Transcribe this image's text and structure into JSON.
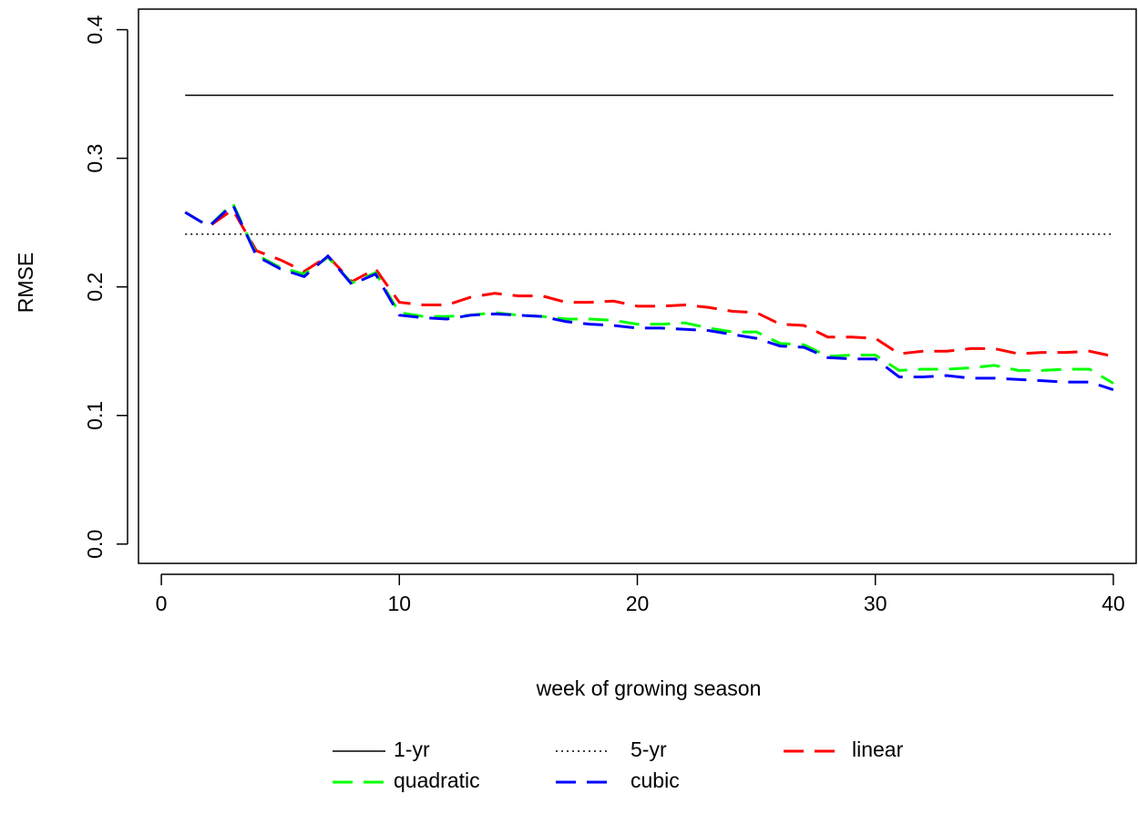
{
  "chart_data": {
    "type": "line",
    "x_label": "week of growing season",
    "y_label": "RMSE",
    "x": [
      1,
      2,
      3,
      4,
      5,
      6,
      7,
      8,
      9,
      10,
      11,
      12,
      13,
      14,
      15,
      16,
      17,
      18,
      19,
      20,
      21,
      22,
      23,
      24,
      25,
      26,
      27,
      28,
      29,
      30,
      31,
      32,
      33,
      34,
      35,
      36,
      37,
      38,
      39,
      40
    ],
    "xlim": [
      -0.96,
      40.96
    ],
    "xticks": [
      0,
      10,
      20,
      30,
      40
    ],
    "ylim": [
      -0.015,
      0.416
    ],
    "yticks": [
      {
        "value": 0,
        "label": "0.0"
      },
      0.1,
      0.2,
      0.3,
      0.4
    ],
    "legend": "bottom",
    "series": [
      {
        "name": "1-yr",
        "color": "#000000",
        "linestyle": "solid",
        "values": [
          0.349,
          0.349,
          0.349,
          0.349,
          0.349,
          0.349,
          0.349,
          0.349,
          0.349,
          0.349,
          0.349,
          0.349,
          0.349,
          0.349,
          0.349,
          0.349,
          0.349,
          0.349,
          0.349,
          0.349,
          0.349,
          0.349,
          0.349,
          0.349,
          0.349,
          0.349,
          0.349,
          0.349,
          0.349,
          0.349,
          0.349,
          0.349,
          0.349,
          0.349,
          0.349,
          0.349,
          0.349,
          0.349,
          0.349,
          0.349
        ]
      },
      {
        "name": "5-yr",
        "color": "#000000",
        "linestyle": "dotted",
        "values": [
          0.241,
          0.241,
          0.241,
          0.241,
          0.241,
          0.241,
          0.241,
          0.241,
          0.241,
          0.241,
          0.241,
          0.241,
          0.241,
          0.241,
          0.241,
          0.241,
          0.241,
          0.241,
          0.241,
          0.241,
          0.241,
          0.241,
          0.241,
          0.241,
          0.241,
          0.241,
          0.241,
          0.241,
          0.241,
          0.241,
          0.241,
          0.241,
          0.241,
          0.241,
          0.241,
          0.241,
          0.241,
          0.241,
          0.241,
          0.241
        ]
      },
      {
        "name": "linear",
        "color": "#ff0000",
        "linestyle": "dashed",
        "values": [
          0.258,
          0.247,
          0.26,
          0.228,
          0.221,
          0.212,
          0.224,
          0.204,
          0.214,
          0.188,
          0.186,
          0.186,
          0.192,
          0.195,
          0.193,
          0.193,
          0.188,
          0.188,
          0.189,
          0.185,
          0.185,
          0.186,
          0.184,
          0.181,
          0.18,
          0.171,
          0.17,
          0.161,
          0.161,
          0.16,
          0.148,
          0.15,
          0.15,
          0.152,
          0.152,
          0.148,
          0.149,
          0.149,
          0.15,
          0.146
        ]
      },
      {
        "name": "quadratic",
        "color": "#00ff00",
        "linestyle": "dashed",
        "values": [
          0.258,
          0.247,
          0.265,
          0.225,
          0.215,
          0.21,
          0.223,
          0.203,
          0.211,
          0.18,
          0.177,
          0.177,
          0.178,
          0.18,
          0.178,
          0.177,
          0.175,
          0.175,
          0.174,
          0.171,
          0.171,
          0.172,
          0.168,
          0.165,
          0.165,
          0.156,
          0.155,
          0.146,
          0.147,
          0.147,
          0.135,
          0.136,
          0.136,
          0.137,
          0.139,
          0.135,
          0.135,
          0.136,
          0.136,
          0.125
        ]
      },
      {
        "name": "cubic",
        "color": "#0000ff",
        "linestyle": "dashed",
        "values": [
          0.258,
          0.247,
          0.264,
          0.224,
          0.214,
          0.208,
          0.224,
          0.202,
          0.21,
          0.178,
          0.176,
          0.175,
          0.178,
          0.179,
          0.178,
          0.177,
          0.173,
          0.171,
          0.17,
          0.168,
          0.168,
          0.167,
          0.166,
          0.163,
          0.16,
          0.154,
          0.153,
          0.145,
          0.144,
          0.144,
          0.13,
          0.13,
          0.131,
          0.129,
          0.129,
          0.128,
          0.127,
          0.126,
          0.126,
          0.12
        ]
      }
    ]
  }
}
